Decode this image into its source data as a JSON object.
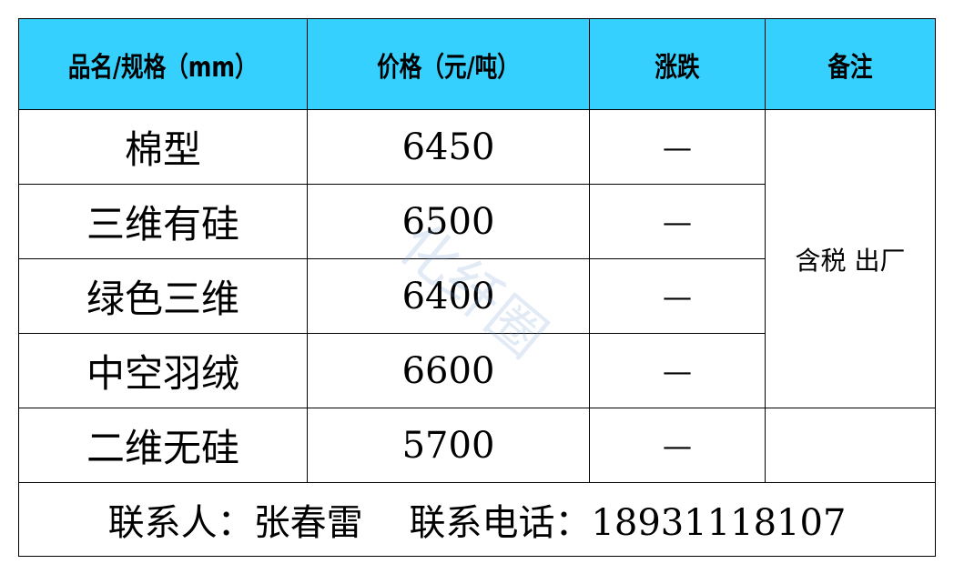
{
  "header": {
    "name": "品名/规格（mm）",
    "price": "价格（元/吨）",
    "change": "涨跌",
    "note": "备注"
  },
  "rows": [
    {
      "name": "棉型",
      "price": "6450",
      "change": "—"
    },
    {
      "name": "三维有硅",
      "price": "6500",
      "change": "—"
    },
    {
      "name": "绿色三维",
      "price": "6400",
      "change": "—"
    },
    {
      "name": "中空羽绒",
      "price": "6600",
      "change": "—"
    },
    {
      "name": "二维无硅",
      "price": "5700",
      "change": "—"
    }
  ],
  "note_merged": "含税  出厂",
  "note_last": "",
  "footer": "联系人：张春雷    联系电话：18931118107",
  "watermark": "化纤圈",
  "colors": {
    "header_bg": "#35d0fd"
  }
}
